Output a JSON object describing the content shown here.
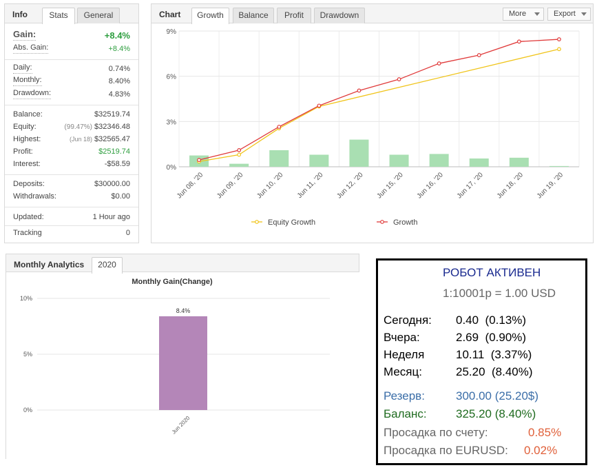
{
  "info": {
    "title": "Info",
    "tabs": [
      "Stats",
      "General"
    ],
    "gain_label": "Gain:",
    "gain_value": "+8.4%",
    "abs_gain_label": "Abs. Gain:",
    "abs_gain_value": "+8.4%",
    "daily_label": "Daily:",
    "daily_value": "0.74%",
    "monthly_label": "Monthly:",
    "monthly_value": "8.40%",
    "drawdown_label": "Drawdown:",
    "drawdown_value": "4.83%",
    "balance_label": "Balance:",
    "balance_value": "$32519.74",
    "equity_label": "Equity:",
    "equity_note": "(99.47%)",
    "equity_value": "$32346.48",
    "highest_label": "Highest:",
    "highest_note": "(Jun 18)",
    "highest_value": "$32565.47",
    "profit_label": "Profit:",
    "profit_value": "$2519.74",
    "interest_label": "Interest:",
    "interest_value": "-$58.59",
    "deposits_label": "Deposits:",
    "deposits_value": "$30000.00",
    "withdrawals_label": "Withdrawals:",
    "withdrawals_value": "$0.00",
    "updated_label": "Updated:",
    "updated_value": "1 Hour ago",
    "tracking_label": "Tracking",
    "tracking_value": "0"
  },
  "chart_panel": {
    "title": "Chart",
    "tabs": [
      "Growth",
      "Balance",
      "Profit",
      "Drawdown"
    ],
    "more_label": "More",
    "export_label": "Export"
  },
  "analytics": {
    "title": "Monthly Analytics",
    "year_tab": "2020"
  },
  "chart_data": [
    {
      "type": "line",
      "categories": [
        "Jun 08, '20",
        "Jun 09, '20",
        "Jun 10, '20",
        "Jun 11, '20",
        "Jun 12, '20",
        "Jun 15, '20",
        "Jun 16, '20",
        "Jun 17, '20",
        "Jun 18, '20",
        "Jun 19, '20"
      ],
      "series": [
        {
          "name": "Equity Growth",
          "type": "line",
          "color": "#f0c419",
          "values": [
            0.35,
            0.8,
            2.55,
            4.0,
            null,
            null,
            null,
            null,
            null,
            7.8
          ]
        },
        {
          "name": "Growth",
          "type": "line",
          "color": "#e03a3a",
          "values": [
            0.45,
            1.1,
            2.65,
            4.05,
            5.05,
            5.8,
            6.85,
            7.4,
            8.3,
            8.45
          ]
        },
        {
          "type": "bar",
          "color": "#a9dfb2",
          "values": [
            0.75,
            0.2,
            1.1,
            0.8,
            1.8,
            0.8,
            0.85,
            0.55,
            0.6,
            0.05
          ]
        }
      ],
      "yticks": [
        "0%",
        "3%",
        "6%",
        "9%"
      ],
      "ylim": [
        0,
        9
      ],
      "legend": "bottom",
      "grid": true
    },
    {
      "type": "bar",
      "title": "Monthly Gain(Change)",
      "categories": [
        "Jun 2020"
      ],
      "values": [
        8.4
      ],
      "data_labels": [
        "8.4%"
      ],
      "yticks": [
        "0%",
        "5%",
        "10%"
      ],
      "ylim": [
        0,
        10
      ],
      "color": "#b486b8",
      "grid": true
    }
  ],
  "robot": {
    "title": "РОБОТ АКТИВЕН",
    "leverage": "1:10001р = 1.00 USD",
    "today_label": "Сегодня:",
    "today_value": "0.40  (0.13%)",
    "yesterday_label": "Вчера:",
    "yesterday_value": "2.69  (0.90%)",
    "week_label": "Неделя",
    "week_value": "10.11  (3.37%)",
    "month_label": "Месяц:",
    "month_value": "25.20  (8.40%)",
    "reserve_label": "Резерв:",
    "reserve_value": "300.00 (25.20$)",
    "balance_label": "Баланс:",
    "balance_value": "325.20 (8.40%)",
    "dd_account_label": "Просадка по счету:",
    "dd_account_value": "0.85%",
    "dd_pair_label": "Просадка по EURUSD:",
    "dd_pair_value": "0.02%"
  }
}
